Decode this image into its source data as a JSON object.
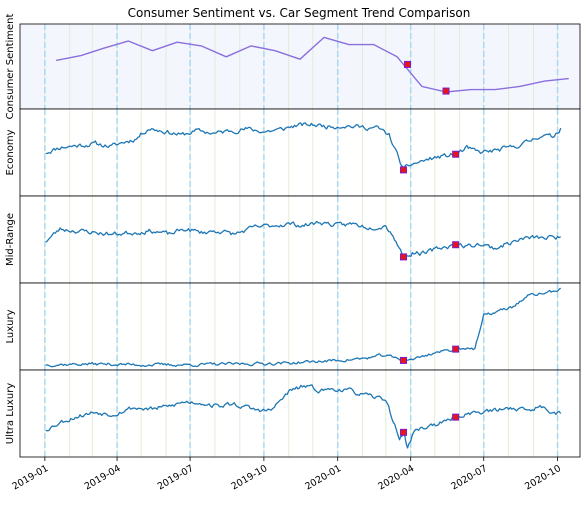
{
  "chart_data": {
    "type": "line",
    "title": "Consumer Sentiment vs. Car Segment Trend Comparison",
    "x_ticks": [
      "2019-01",
      "2019-04",
      "2019-07",
      "2019-10",
      "2020-01",
      "2020-04",
      "2020-07",
      "2020-10"
    ],
    "x_range": [
      "2018-12-01",
      "2020-10-29"
    ],
    "grid": "vertical dashed lines at quarter starts, faint lines at month starts",
    "markers": [
      "2020-03-23",
      "2020-05-27"
    ],
    "colors": {
      "sentiment": "#8a6fde",
      "segment": "#1f77b4",
      "marker_fill": "#e8141c",
      "marker_edge": "#7a1ccc",
      "major_grid": "#a9d8f0",
      "minor_grid": "#dbe9d0",
      "sentiment_bg": "#f4f6fd"
    },
    "sentiment": {
      "label": "Consumer Sentiment",
      "ylim": [
        80,
        115
      ],
      "x": [
        "2019-01-15",
        "2019-02-15",
        "2019-03-15",
        "2019-04-15",
        "2019-05-15",
        "2019-06-15",
        "2019-07-15",
        "2019-08-15",
        "2019-09-15",
        "2019-10-15",
        "2019-11-15",
        "2019-12-15",
        "2020-01-15",
        "2020-02-15",
        "2020-03-15",
        "2020-04-15",
        "2020-05-15",
        "2020-06-15",
        "2020-07-15",
        "2020-08-15",
        "2020-09-15",
        "2020-10-15"
      ],
      "values": [
        100,
        102,
        105,
        108,
        104,
        107.5,
        106,
        101.5,
        106,
        104,
        100.5,
        109.5,
        106.5,
        106.5,
        101.5,
        89.3,
        87,
        88,
        88,
        89.3,
        91.5,
        92.5
      ]
    },
    "segments": [
      {
        "label": "Ultra Luxury",
        "ylim": [
          0.1,
          1.3
        ],
        "x": [
          "2019-01-02",
          "2019-01-20",
          "2019-02-10",
          "2019-03-05",
          "2019-03-25",
          "2019-04-20",
          "2019-05-15",
          "2019-06-05",
          "2019-06-25",
          "2019-07-15",
          "2019-08-05",
          "2019-08-25",
          "2019-09-20",
          "2019-10-10",
          "2019-11-01",
          "2019-11-20",
          "2019-12-10",
          "2020-01-01",
          "2020-01-20",
          "2020-02-10",
          "2020-03-01",
          "2020-03-10",
          "2020-03-18",
          "2020-03-23",
          "2020-03-28",
          "2020-04-05",
          "2020-04-15",
          "2020-04-30",
          "2020-05-15",
          "2020-05-27",
          "2020-06-10",
          "2020-06-25",
          "2020-07-15",
          "2020-08-05",
          "2020-08-25",
          "2020-09-15",
          "2020-09-25",
          "2020-10-05"
        ],
        "values": [
          0.48,
          0.58,
          0.66,
          0.72,
          0.69,
          0.78,
          0.76,
          0.8,
          0.86,
          0.85,
          0.8,
          0.83,
          0.75,
          0.74,
          1.0,
          1.08,
          1.02,
          1.04,
          1.0,
          0.93,
          0.9,
          0.6,
          0.35,
          0.44,
          0.22,
          0.45,
          0.5,
          0.55,
          0.58,
          0.65,
          0.7,
          0.72,
          0.74,
          0.78,
          0.75,
          0.8,
          0.72,
          0.7
        ]
      }
    ]
  },
  "segment_labels": [
    "Economy",
    "Mid-Range",
    "Luxury"
  ],
  "segment_series": {
    "economy": {
      "ylim": [
        0,
        1
      ],
      "x": [
        "2019-01-02",
        "2019-01-20",
        "2019-02-10",
        "2019-03-05",
        "2019-03-25",
        "2019-04-10",
        "2019-04-25",
        "2019-05-10",
        "2019-06-01",
        "2019-06-20",
        "2019-07-10",
        "2019-08-01",
        "2019-08-20",
        "2019-09-10",
        "2019-10-01",
        "2019-10-20",
        "2019-11-10",
        "2019-12-01",
        "2019-12-20",
        "2020-01-10",
        "2020-02-01",
        "2020-02-20",
        "2020-03-05",
        "2020-03-15",
        "2020-03-23",
        "2020-04-01",
        "2020-04-15",
        "2020-05-01",
        "2020-05-15",
        "2020-05-27",
        "2020-06-10",
        "2020-06-25",
        "2020-07-15",
        "2020-08-05",
        "2020-08-25",
        "2020-09-10",
        "2020-09-25",
        "2020-10-05"
      ],
      "values": [
        0.5,
        0.56,
        0.58,
        0.6,
        0.57,
        0.62,
        0.66,
        0.78,
        0.74,
        0.7,
        0.75,
        0.72,
        0.75,
        0.77,
        0.74,
        0.76,
        0.81,
        0.82,
        0.8,
        0.81,
        0.79,
        0.78,
        0.7,
        0.48,
        0.3,
        0.36,
        0.4,
        0.44,
        0.46,
        0.48,
        0.55,
        0.5,
        0.52,
        0.56,
        0.62,
        0.7,
        0.68,
        0.78
      ]
    },
    "mid_range": {
      "ylim": [
        0,
        1
      ],
      "x": [
        "2019-01-02",
        "2019-01-20",
        "2019-02-10",
        "2019-03-05",
        "2019-03-25",
        "2019-04-20",
        "2019-05-15",
        "2019-06-05",
        "2019-06-25",
        "2019-07-15",
        "2019-08-05",
        "2019-08-25",
        "2019-09-20",
        "2019-10-10",
        "2019-11-01",
        "2019-11-20",
        "2019-12-10",
        "2020-01-01",
        "2020-01-20",
        "2020-02-10",
        "2020-03-01",
        "2020-03-10",
        "2020-03-23",
        "2020-04-05",
        "2020-04-20",
        "2020-05-05",
        "2020-05-27",
        "2020-06-10",
        "2020-06-25",
        "2020-07-15",
        "2020-08-05",
        "2020-08-25",
        "2020-09-15",
        "2020-10-05"
      ],
      "values": [
        0.48,
        0.62,
        0.6,
        0.58,
        0.56,
        0.58,
        0.6,
        0.56,
        0.62,
        0.58,
        0.6,
        0.56,
        0.64,
        0.66,
        0.68,
        0.66,
        0.7,
        0.66,
        0.68,
        0.64,
        0.66,
        0.55,
        0.3,
        0.35,
        0.34,
        0.4,
        0.44,
        0.42,
        0.45,
        0.4,
        0.47,
        0.52,
        0.52,
        0.53
      ]
    },
    "luxury": {
      "ylim": [
        0,
        1
      ],
      "x": [
        "2019-01-02",
        "2019-03-01",
        "2019-05-01",
        "2019-07-01",
        "2019-09-01",
        "2019-11-01",
        "2020-01-01",
        "2020-02-01",
        "2020-03-01",
        "2020-03-15",
        "2020-03-23",
        "2020-04-10",
        "2020-05-01",
        "2020-05-27",
        "2020-06-10",
        "2020-06-20",
        "2020-07-01",
        "2020-07-20",
        "2020-08-05",
        "2020-08-25",
        "2020-09-10",
        "2020-09-25",
        "2020-10-05"
      ],
      "values": [
        0.06,
        0.07,
        0.06,
        0.06,
        0.07,
        0.08,
        0.11,
        0.13,
        0.17,
        0.13,
        0.11,
        0.14,
        0.2,
        0.24,
        0.26,
        0.24,
        0.62,
        0.68,
        0.72,
        0.85,
        0.88,
        0.9,
        0.94
      ]
    }
  }
}
